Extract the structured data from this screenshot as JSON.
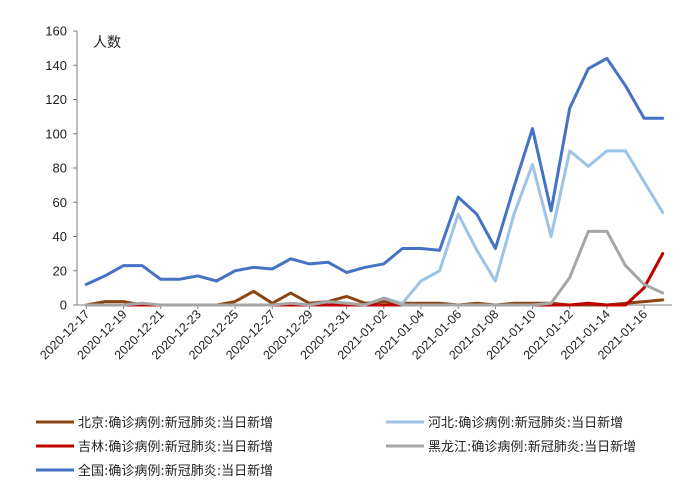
{
  "chart_data": {
    "type": "line",
    "ylabel": "人数",
    "ylim": [
      0,
      160
    ],
    "yticks": [
      0,
      20,
      40,
      60,
      80,
      100,
      120,
      140,
      160
    ],
    "grid": false,
    "legend_position": "bottom",
    "x": [
      "2020-12-17",
      "2020-12-18",
      "2020-12-19",
      "2020-12-20",
      "2020-12-21",
      "2020-12-22",
      "2020-12-23",
      "2020-12-24",
      "2020-12-25",
      "2020-12-26",
      "2020-12-27",
      "2020-12-28",
      "2020-12-29",
      "2020-12-30",
      "2020-12-31",
      "2021-01-01",
      "2021-01-02",
      "2021-01-03",
      "2021-01-04",
      "2021-01-05",
      "2021-01-06",
      "2021-01-07",
      "2021-01-08",
      "2021-01-09",
      "2021-01-10",
      "2021-01-11",
      "2021-01-12",
      "2021-01-13",
      "2021-01-14",
      "2021-01-15",
      "2021-01-16",
      "2021-01-17"
    ],
    "xtick_labels": [
      "2020-12-17",
      "2020-12-19",
      "2020-12-21",
      "2020-12-23",
      "2020-12-25",
      "2020-12-27",
      "2020-12-29",
      "2020-12-31",
      "2021-01-02",
      "2021-01-04",
      "2021-01-06",
      "2021-01-08",
      "2021-01-10",
      "2021-01-12",
      "2021-01-14",
      "2021-01-16"
    ],
    "series": [
      {
        "name": "北京:确诊病例:新冠肺炎:当日新增",
        "color": "#8B4513",
        "values": [
          0,
          2,
          2,
          0,
          0,
          0,
          0,
          0,
          2,
          8,
          1,
          7,
          1,
          2,
          5,
          1,
          2,
          1,
          1,
          1,
          0,
          1,
          0,
          1,
          1,
          1,
          0,
          0,
          0,
          1,
          2,
          3
        ]
      },
      {
        "name": "河北:确诊病例:新冠肺炎:当日新增",
        "color": "#9DC3E6",
        "values": [
          0,
          0,
          0,
          0,
          0,
          0,
          0,
          0,
          0,
          0,
          0,
          0,
          0,
          0,
          0,
          0,
          4,
          1,
          14,
          20,
          53,
          32,
          14,
          53,
          82,
          40,
          90,
          81,
          90,
          90,
          72,
          54
        ]
      },
      {
        "name": "吉林:确诊病例:新冠肺炎:当日新增",
        "color": "#C00000",
        "values": [
          0,
          0,
          0,
          0,
          0,
          0,
          0,
          0,
          0,
          0,
          0,
          0,
          0,
          0,
          0,
          0,
          0,
          0,
          0,
          0,
          0,
          0,
          0,
          0,
          0,
          0,
          0,
          1,
          0,
          0,
          10,
          30
        ]
      },
      {
        "name": "黑龙江:确诊病例:新冠肺炎:当日新增",
        "color": "#A6A6A6",
        "values": [
          0,
          0,
          0,
          1,
          0,
          0,
          0,
          0,
          0,
          0,
          0,
          1,
          0,
          2,
          1,
          0,
          4,
          0,
          0,
          0,
          0,
          0,
          0,
          0,
          0,
          1,
          16,
          43,
          43,
          23,
          12,
          7
        ]
      },
      {
        "name": "全国:确诊病例:新冠肺炎:当日新增",
        "color": "#4472C4",
        "values": [
          12,
          17,
          23,
          23,
          15,
          15,
          17,
          14,
          20,
          22,
          21,
          27,
          24,
          25,
          19,
          22,
          24,
          33,
          33,
          32,
          63,
          53,
          33,
          69,
          103,
          55,
          115,
          138,
          144,
          128,
          109,
          109
        ]
      }
    ]
  }
}
